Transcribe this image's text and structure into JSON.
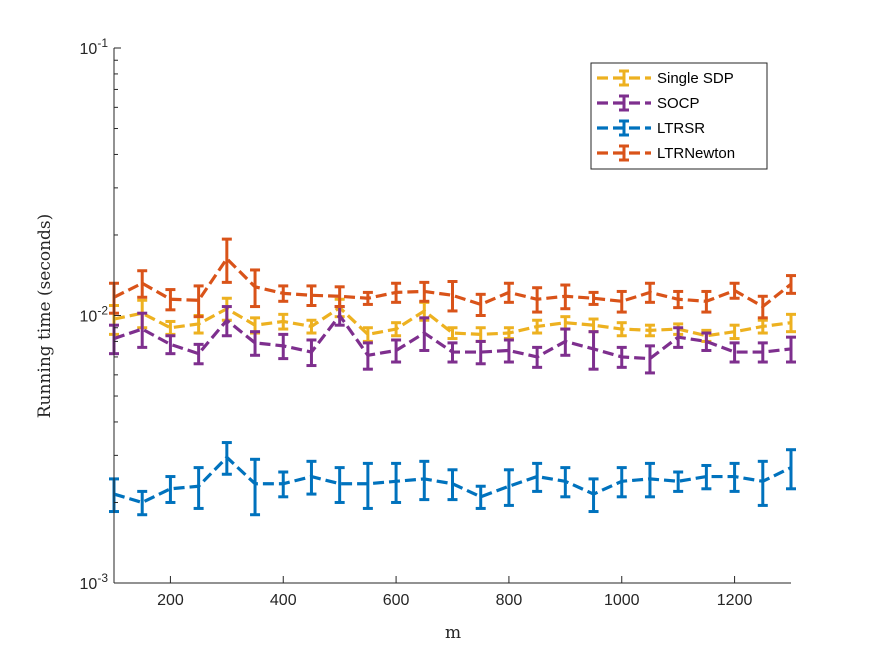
{
  "chart_data": {
    "type": "line",
    "xlabel": "m",
    "ylabel": "Running time (seconds)",
    "yscale": "log",
    "xlim": [
      100,
      1300
    ],
    "ylim": [
      0.001,
      0.1
    ],
    "x_ticks": [
      200,
      400,
      600,
      800,
      1000,
      1200
    ],
    "x_tick_labels": [
      "200",
      "400",
      "600",
      "800",
      "1000",
      "1200"
    ],
    "y_ticks": [
      0.001,
      0.01,
      0.1
    ],
    "y_tick_labels": [
      {
        "base": "10",
        "exp": "-3"
      },
      {
        "base": "10",
        "exp": "-2"
      },
      {
        "base": "10",
        "exp": "-1"
      }
    ],
    "grid": false,
    "legend_position": "top-right",
    "line_style": "dashed with error bars",
    "x": [
      100,
      150,
      200,
      250,
      300,
      350,
      400,
      450,
      500,
      550,
      600,
      650,
      700,
      750,
      800,
      850,
      900,
      950,
      1000,
      1050,
      1100,
      1150,
      1200,
      1250,
      1300
    ],
    "series": [
      {
        "name": "Single SDP",
        "color": "#EDB120",
        "values": [
          0.0097,
          0.0102,
          0.009,
          0.0093,
          0.0106,
          0.0092,
          0.0095,
          0.0091,
          0.0107,
          0.0085,
          0.0089,
          0.0104,
          0.0086,
          0.0085,
          0.0086,
          0.0091,
          0.0094,
          0.0092,
          0.0089,
          0.0088,
          0.0089,
          0.0084,
          0.0087,
          0.0091,
          0.0094
        ],
        "error": [
          0.0012,
          0.0012,
          0.0005,
          0.0007,
          0.001,
          0.0006,
          0.0006,
          0.0005,
          0.0008,
          0.0005,
          0.0005,
          0.0008,
          0.0004,
          0.0005,
          0.0004,
          0.0005,
          0.0005,
          0.0005,
          0.0005,
          0.0004,
          0.0004,
          0.0004,
          0.0005,
          0.0005,
          0.0007
        ]
      },
      {
        "name": "SOCP",
        "color": "#7E2F8E",
        "values": [
          0.0082,
          0.0089,
          0.0078,
          0.0072,
          0.0096,
          0.0079,
          0.0077,
          0.0073,
          0.01,
          0.0071,
          0.0074,
          0.0086,
          0.0073,
          0.0073,
          0.0074,
          0.007,
          0.008,
          0.0075,
          0.007,
          0.0069,
          0.0083,
          0.008,
          0.0073,
          0.0073,
          0.0075
        ],
        "error": [
          0.001,
          0.0013,
          0.0006,
          0.0006,
          0.0012,
          0.0008,
          0.0008,
          0.0008,
          0.0008,
          0.0008,
          0.0007,
          0.0012,
          0.0006,
          0.0007,
          0.0007,
          0.0006,
          0.0009,
          0.0012,
          0.0006,
          0.0008,
          0.0007,
          0.0006,
          0.0006,
          0.0006,
          0.0008
        ]
      },
      {
        "name": "LTRSR",
        "color": "#0072BD",
        "values": [
          0.00215,
          0.002,
          0.00225,
          0.0023,
          0.00295,
          0.00235,
          0.00235,
          0.0025,
          0.00235,
          0.00235,
          0.0024,
          0.00245,
          0.00235,
          0.0021,
          0.0023,
          0.0025,
          0.0024,
          0.00215,
          0.0024,
          0.00245,
          0.0024,
          0.0025,
          0.0025,
          0.0024,
          0.0027
        ],
        "error": [
          0.0003,
          0.0002,
          0.00025,
          0.0004,
          0.0004,
          0.00055,
          0.00025,
          0.00035,
          0.00035,
          0.00045,
          0.0004,
          0.0004,
          0.0003,
          0.0002,
          0.00035,
          0.0003,
          0.0003,
          0.0003,
          0.0003,
          0.00035,
          0.0002,
          0.00025,
          0.0003,
          0.00045,
          0.00045
        ]
      },
      {
        "name": "LTRNewton",
        "color": "#D95319",
        "values": [
          0.0117,
          0.0132,
          0.0115,
          0.0114,
          0.0163,
          0.0128,
          0.0121,
          0.0119,
          0.0118,
          0.0116,
          0.0122,
          0.0123,
          0.0119,
          0.011,
          0.0122,
          0.0115,
          0.0118,
          0.0116,
          0.0113,
          0.0122,
          0.0115,
          0.0113,
          0.0124,
          0.0108,
          0.0131
        ],
        "error": [
          0.0015,
          0.0015,
          0.001,
          0.0015,
          0.003,
          0.002,
          0.0008,
          0.001,
          0.001,
          0.0006,
          0.001,
          0.001,
          0.0015,
          0.001,
          0.001,
          0.0012,
          0.0012,
          0.0006,
          0.001,
          0.001,
          0.0008,
          0.001,
          0.0008,
          0.001,
          0.001
        ]
      }
    ]
  }
}
